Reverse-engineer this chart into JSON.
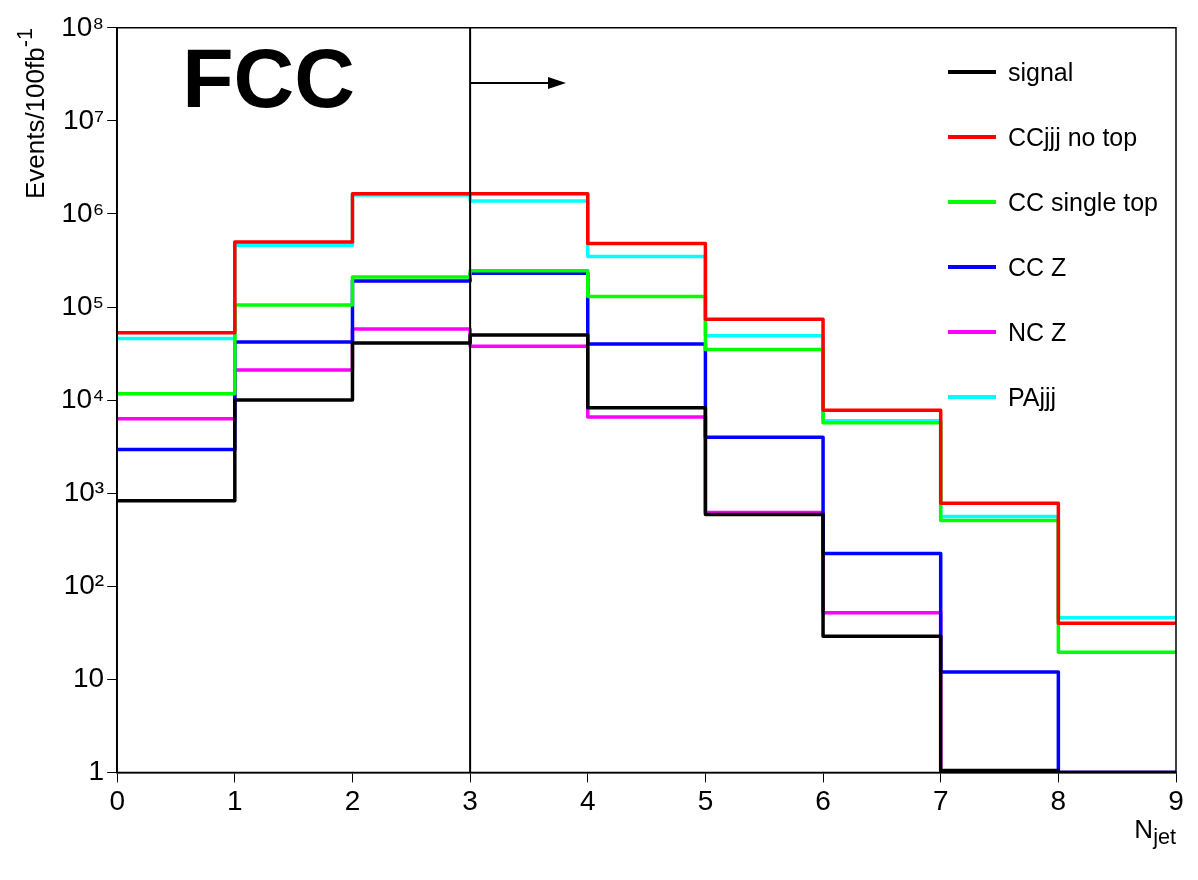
{
  "chart_data": {
    "type": "histogram",
    "xlabel": "N$_{jet}$",
    "ylabel": "Events/100fb$^{-1}$",
    "annotations": [
      "FCC"
    ],
    "bins": [
      0,
      1,
      2,
      3,
      4,
      5,
      6,
      7,
      8,
      9
    ],
    "series": [
      {
        "name": "signal",
        "color": "#000000",
        "values": [
          830,
          10000,
          41000,
          50000,
          8300,
          590,
          29,
          1.05,
          1
        ]
      },
      {
        "name": "CCjjj no top",
        "color": "#ff0000",
        "values": [
          53000,
          500000,
          1650000,
          1650000,
          480000,
          74000,
          7800,
          780,
          40
        ]
      },
      {
        "name": "CC single top",
        "color": "#00ff00",
        "values": [
          11700,
          105000,
          210000,
          245000,
          130000,
          35000,
          5700,
          510,
          19.5
        ]
      },
      {
        "name": "CC Z",
        "color": "#0000ff",
        "values": [
          2950,
          42000,
          190000,
          230000,
          40000,
          4000,
          225,
          12,
          1
        ]
      },
      {
        "name": "NC Z",
        "color": "#ff00ff",
        "values": [
          6300,
          21000,
          58000,
          38000,
          6600,
          620,
          52,
          1,
          1
        ]
      },
      {
        "name": "PAjjj",
        "color": "#00ffff",
        "values": [
          46000,
          460000,
          1600000,
          1380000,
          350000,
          49000,
          6000,
          560,
          46
        ]
      }
    ],
    "xlim": [
      0,
      9
    ],
    "xticks": [
      0,
      1,
      2,
      3,
      4,
      5,
      6,
      7,
      8,
      9
    ],
    "ylim": [
      1,
      100000000
    ],
    "yticks": [
      1,
      10,
      {
        "value": 100,
        "label": "10²"
      },
      {
        "value": 1000,
        "label": "10³"
      },
      {
        "value": 10000,
        "label": "10⁴"
      },
      {
        "value": 100000,
        "label": "10⁵"
      },
      {
        "value": 1000000,
        "label": "10⁶"
      },
      {
        "value": 10000000,
        "label": "10⁷"
      },
      {
        "value": 100000000,
        "label": "10⁸"
      }
    ],
    "log": "y",
    "grid": false,
    "legend": "top right",
    "line_style": "solid",
    "marker": "none",
    "ref_lines": [
      {
        "axis": "x",
        "value": 3,
        "color": "#000000"
      }
    ]
  }
}
